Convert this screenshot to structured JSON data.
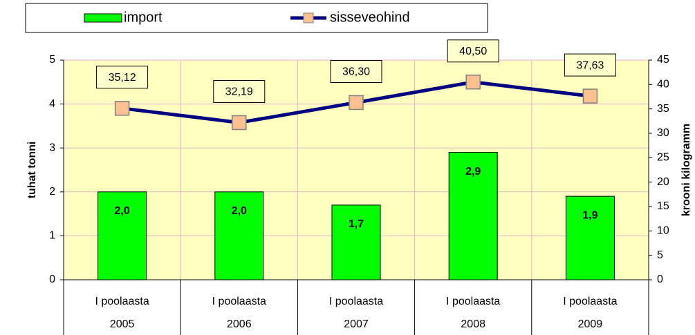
{
  "chart_data": {
    "type": "bar",
    "categories": [
      "I poolaasta",
      "I poolaasta",
      "I poolaasta",
      "I poolaasta",
      "I poolaasta"
    ],
    "category_groups": [
      "2005",
      "2006",
      "2007",
      "2008",
      "2009"
    ],
    "series": [
      {
        "name": "import",
        "type": "bar",
        "color": "#00ff00",
        "values": [
          2.0,
          2.0,
          1.7,
          2.9,
          1.9
        ],
        "value_labels": [
          "2,0",
          "2,0",
          "1,7",
          "2,9",
          "1,9"
        ]
      },
      {
        "name": "sisseveohind",
        "type": "line",
        "axis": "y2",
        "color": "#000080",
        "marker_color": "#fac090",
        "values": [
          35.12,
          32.19,
          36.3,
          40.5,
          37.63
        ],
        "value_labels": [
          "35,12",
          "32,19",
          "36,30",
          "40,50",
          "37,63"
        ]
      }
    ],
    "y_label": "tuhat tonni",
    "y2_label": "krooni kilogramm",
    "ylim": [
      0,
      5
    ],
    "yticks": [
      0,
      1,
      2,
      3,
      4,
      5
    ],
    "y2lim": [
      0,
      45
    ],
    "y2ticks": [
      0,
      5,
      10,
      15,
      20,
      25,
      30,
      35,
      40,
      45
    ],
    "grid": true,
    "legend": "top"
  }
}
